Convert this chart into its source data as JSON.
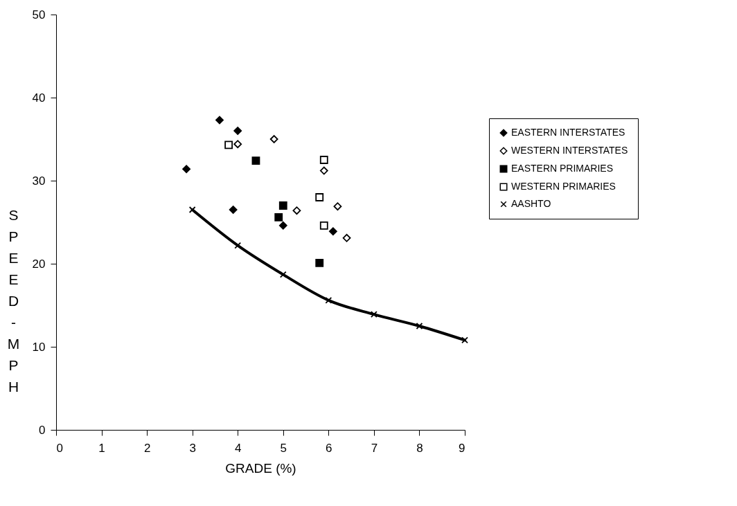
{
  "chart_data": {
    "type": "scatter",
    "xlabel": "GRADE (%)",
    "ylabel": "SPEED-MPH",
    "xlim": [
      0,
      9
    ],
    "ylim": [
      0,
      50
    ],
    "xticks": [
      0,
      1,
      2,
      3,
      4,
      5,
      6,
      7,
      8,
      9
    ],
    "yticks": [
      0,
      10,
      20,
      30,
      40,
      50
    ],
    "grid": false,
    "legend": "right",
    "series": [
      {
        "name": "EASTERN INTERSTATES",
        "color": "#000000",
        "marker": "diamond",
        "x": [
          2.87,
          3.6,
          4.0,
          3.9,
          5.0,
          6.1
        ],
        "values": [
          31.4,
          37.3,
          36.0,
          26.5,
          24.6,
          23.9
        ]
      },
      {
        "name": "WESTERN INTERSTATES",
        "color": "#ffffff",
        "marker": "diamond",
        "x": [
          4.0,
          4.8,
          5.3,
          5.9,
          6.2,
          6.4
        ],
        "values": [
          34.4,
          35.0,
          26.4,
          31.2,
          26.9,
          23.1
        ]
      },
      {
        "name": "EASTERN PRIMARIES",
        "color": "#000000",
        "marker": "square",
        "x": [
          4.4,
          5.0,
          4.9,
          5.8
        ],
        "values": [
          32.4,
          27.0,
          25.6,
          20.1
        ]
      },
      {
        "name": "WESTERN PRIMARIES",
        "color": "#ffffff",
        "marker": "square",
        "x": [
          3.8,
          5.9,
          5.8,
          5.9
        ],
        "values": [
          34.3,
          32.5,
          28.0,
          24.6
        ]
      },
      {
        "name": "AASHTO",
        "color": "#000000",
        "type": "line",
        "marker": "cross",
        "x": [
          3,
          4,
          5,
          6,
          7,
          8,
          9
        ],
        "values": [
          26.5,
          22.2,
          18.7,
          15.6,
          13.9,
          12.5,
          10.8
        ]
      }
    ]
  }
}
